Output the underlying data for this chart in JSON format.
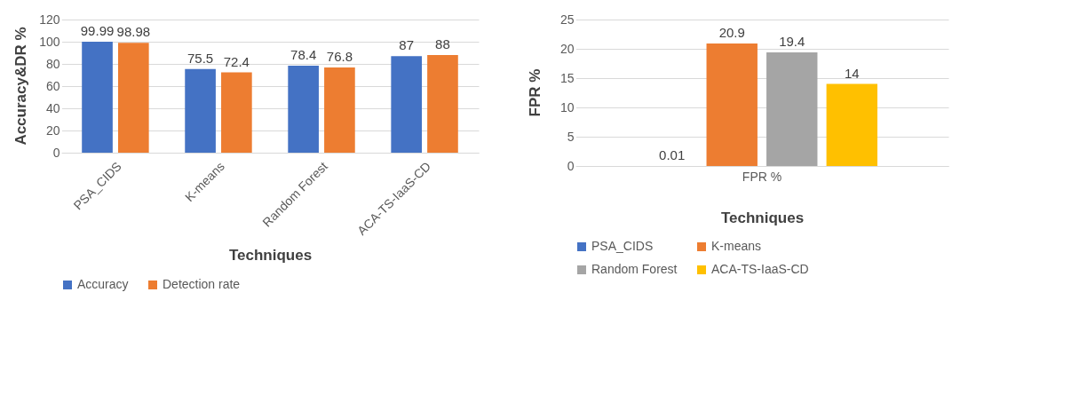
{
  "chart_data": [
    {
      "type": "bar",
      "xlabel": "Techniques",
      "ylabel": "Accuracy&DR %",
      "categories": [
        "PSA_CIDS",
        "K-means",
        "Random Forest",
        "ACA-TS-IaaS-CD"
      ],
      "series": [
        {
          "name": "Accuracy",
          "color": "#4472c4",
          "values": [
            99.99,
            75.5,
            78.4,
            87
          ]
        },
        {
          "name": "Detection rate",
          "color": "#ed7d31",
          "values": [
            98.98,
            72.4,
            76.8,
            88
          ]
        }
      ],
      "ylim": [
        0,
        120
      ],
      "yticks": [
        0,
        20,
        40,
        60,
        80,
        100,
        120
      ],
      "grid": "y",
      "legend": "bottom",
      "data_labels": true
    },
    {
      "type": "bar",
      "xlabel": "Techniques",
      "ylabel": "FPR %",
      "categories": [
        null
      ],
      "annotations": [
        "FPR %"
      ],
      "series": [
        {
          "name": "PSA_CIDS",
          "color": "#4472c4",
          "values": [
            0.01
          ]
        },
        {
          "name": "K-means",
          "color": "#ed7d31",
          "values": [
            20.9
          ]
        },
        {
          "name": "Random Forest",
          "color": "#a5a5a5",
          "values": [
            19.4
          ]
        },
        {
          "name": "ACA-TS-IaaS-CD",
          "color": "#ffc000",
          "values": [
            14
          ]
        }
      ],
      "ylim": [
        0,
        25
      ],
      "yticks": [
        0,
        5,
        10,
        15,
        20,
        25
      ],
      "grid": "y",
      "legend": "bottom",
      "data_labels": true
    }
  ]
}
